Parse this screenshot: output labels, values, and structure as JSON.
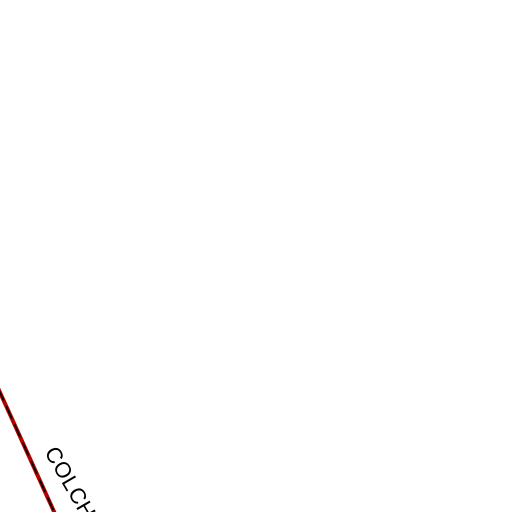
{
  "map": {
    "background_color": "#ffffff",
    "boundary": {
      "kind": "dashed-border",
      "line_color": "#b30000",
      "dash_color": "#000000"
    },
    "labels": [
      {
        "text": "COLCH",
        "color": "#000000"
      }
    ]
  }
}
